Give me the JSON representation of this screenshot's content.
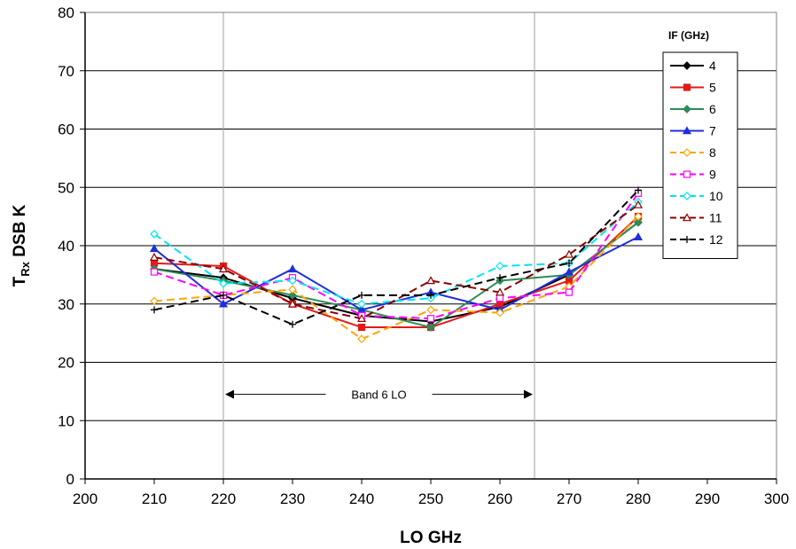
{
  "chart_data": {
    "type": "line",
    "xlabel": "LO  GHz",
    "ylabel_main": "T",
    "ylabel_sub": "Rx",
    "ylabel_rest": "  DSB  K",
    "xlim": [
      200,
      300
    ],
    "ylim": [
      0,
      80
    ],
    "xticks": [
      200,
      210,
      220,
      230,
      240,
      250,
      260,
      270,
      280,
      290,
      300
    ],
    "yticks": [
      0,
      10,
      20,
      30,
      40,
      50,
      60,
      70,
      80
    ],
    "vertical_lines": [
      220,
      265
    ],
    "grid": "horizontal",
    "legend_title": "IF (GHz)",
    "legend_position": "right",
    "annotation": {
      "text": "Band 6 LO",
      "x_start": 220,
      "x_end": 265,
      "y": 14.5
    },
    "x": [
      210,
      220,
      230,
      240,
      250,
      260,
      270,
      280
    ],
    "series": [
      {
        "name": "4",
        "color": "#000000",
        "dash": "solid",
        "marker": "diamond",
        "values": [
          36.0,
          34.5,
          31.0,
          28.0,
          27.0,
          29.5,
          35.0,
          44.0
        ]
      },
      {
        "name": "5",
        "color": "#e41a1a",
        "dash": "solid",
        "marker": "square",
        "values": [
          37.0,
          36.5,
          30.0,
          26.0,
          26.0,
          30.0,
          34.0,
          45.0
        ]
      },
      {
        "name": "6",
        "color": "#2e8b57",
        "dash": "solid",
        "marker": "diamond",
        "values": [
          36.0,
          34.0,
          31.5,
          29.0,
          26.0,
          34.0,
          35.0,
          44.0
        ]
      },
      {
        "name": "7",
        "color": "#1f2fdc",
        "dash": "solid",
        "marker": "triangle",
        "values": [
          39.5,
          30.0,
          36.0,
          29.0,
          32.0,
          29.0,
          35.5,
          41.5
        ]
      },
      {
        "name": "8",
        "color": "#ffa500",
        "dash": "dash",
        "marker": "diamond-open",
        "values": [
          30.5,
          31.5,
          32.5,
          24.0,
          29.0,
          28.5,
          33.0,
          45.0
        ]
      },
      {
        "name": "9",
        "color": "#ff00ff",
        "dash": "dash",
        "marker": "square-open",
        "values": [
          35.5,
          31.5,
          34.5,
          28.0,
          27.5,
          31.0,
          32.0,
          49.0
        ]
      },
      {
        "name": "10",
        "color": "#00e5ee",
        "dash": "dash",
        "marker": "diamond-open",
        "values": [
          42.0,
          33.5,
          34.0,
          30.0,
          31.0,
          36.5,
          37.0,
          47.5
        ]
      },
      {
        "name": "11",
        "color": "#8b0000",
        "dash": "dash",
        "marker": "triangle-open",
        "values": [
          38.0,
          36.0,
          30.0,
          27.5,
          34.0,
          32.0,
          38.5,
          47.0
        ]
      },
      {
        "name": "12",
        "color": "#000000",
        "dash": "dash",
        "marker": "plus",
        "values": [
          29.0,
          31.5,
          26.5,
          31.5,
          31.5,
          34.5,
          37.0,
          49.5
        ]
      }
    ]
  }
}
